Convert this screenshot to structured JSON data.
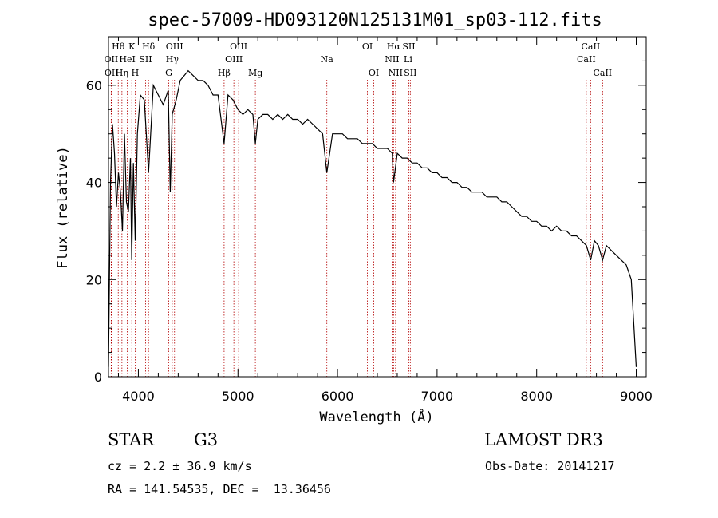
{
  "chart_data": {
    "type": "line",
    "title": "spec-57009-HD093120N125131M01_sp03-112.fits",
    "xlabel": "Wavelength (Å)",
    "ylabel": "Flux (relative)",
    "xlim": [
      3700,
      9100
    ],
    "ylim": [
      0,
      70
    ],
    "x_ticks": [
      4000,
      5000,
      6000,
      7000,
      8000,
      9000
    ],
    "y_ticks": [
      0,
      20,
      40,
      60
    ],
    "series": [
      {
        "x": [
          3700,
          3720,
          3740,
          3760,
          3780,
          3800,
          3820,
          3840,
          3860,
          3880,
          3900,
          3920,
          3933,
          3950,
          3968,
          3990,
          4020,
          4060,
          4102,
          4150,
          4200,
          4250,
          4300,
          4320,
          4340,
          4380,
          4420,
          4460,
          4500,
          4550,
          4600,
          4650,
          4700,
          4750,
          4800,
          4861,
          4900,
          4950,
          5000,
          5050,
          5100,
          5150,
          5175,
          5200,
          5250,
          5300,
          5350,
          5400,
          5450,
          5500,
          5550,
          5600,
          5650,
          5700,
          5750,
          5800,
          5850,
          5893,
          5950,
          6000,
          6050,
          6100,
          6150,
          6200,
          6250,
          6300,
          6350,
          6400,
          6450,
          6500,
          6550,
          6563,
          6600,
          6650,
          6700,
          6750,
          6800,
          6850,
          6900,
          6950,
          7000,
          7050,
          7100,
          7150,
          7200,
          7250,
          7300,
          7350,
          7400,
          7450,
          7500,
          7550,
          7600,
          7650,
          7700,
          7750,
          7800,
          7850,
          7900,
          7950,
          8000,
          8050,
          8100,
          8150,
          8200,
          8250,
          8300,
          8350,
          8400,
          8450,
          8500,
          8542,
          8580,
          8620,
          8662,
          8700,
          8750,
          8800,
          8850,
          8900,
          8950,
          9000
        ],
        "y": [
          2,
          40,
          52,
          46,
          35,
          42,
          38,
          30,
          50,
          36,
          34,
          45,
          24,
          44,
          28,
          50,
          58,
          57,
          42,
          60,
          58,
          56,
          59,
          38,
          54,
          57,
          61,
          62,
          63,
          62,
          61,
          61,
          60,
          58,
          58,
          48,
          58,
          57,
          55,
          54,
          55,
          54,
          48,
          53,
          54,
          54,
          53,
          54,
          53,
          54,
          53,
          53,
          52,
          53,
          52,
          51,
          50,
          42,
          50,
          50,
          50,
          49,
          49,
          49,
          48,
          48,
          48,
          47,
          47,
          47,
          46,
          40,
          46,
          45,
          45,
          44,
          44,
          43,
          43,
          42,
          42,
          41,
          41,
          40,
          40,
          39,
          39,
          38,
          38,
          38,
          37,
          37,
          37,
          36,
          36,
          35,
          34,
          33,
          33,
          32,
          32,
          31,
          31,
          30,
          31,
          30,
          30,
          29,
          29,
          28,
          27,
          24,
          28,
          27,
          24,
          27,
          26,
          25,
          24,
          23,
          20,
          2
        ]
      }
    ],
    "line_ids": [
      {
        "label": "OII",
        "x": 3727,
        "row": 2
      },
      {
        "label": "OII",
        "x": 3730,
        "row": 3
      },
      {
        "label": "Hθ",
        "x": 3798,
        "row": 1
      },
      {
        "label": "Hη",
        "x": 3835,
        "row": 3
      },
      {
        "label": "HeI",
        "x": 3889,
        "row": 2
      },
      {
        "label": "K",
        "x": 3934,
        "row": 1
      },
      {
        "label": "SII",
        "x": 4072,
        "row": 2
      },
      {
        "label": "H",
        "x": 3968,
        "row": 3
      },
      {
        "label": "Hδ",
        "x": 4102,
        "row": 1
      },
      {
        "label": "OIII",
        "x": 4363,
        "row": 1
      },
      {
        "label": "Hγ",
        "x": 4340,
        "row": 2
      },
      {
        "label": "G",
        "x": 4305,
        "row": 3
      },
      {
        "label": "Hβ",
        "x": 4861,
        "row": 3
      },
      {
        "label": "OIII",
        "x": 4959,
        "row": 2
      },
      {
        "label": "OIII",
        "x": 5007,
        "row": 1
      },
      {
        "label": "Mg",
        "x": 5175,
        "row": 3
      },
      {
        "label": "Na",
        "x": 5893,
        "row": 2
      },
      {
        "label": "OI",
        "x": 6300,
        "row": 1
      },
      {
        "label": "OI",
        "x": 6364,
        "row": 3
      },
      {
        "label": "Hα",
        "x": 6563,
        "row": 1
      },
      {
        "label": "NII",
        "x": 6548,
        "row": 2
      },
      {
        "label": "NII",
        "x": 6583,
        "row": 3
      },
      {
        "label": "SII",
        "x": 6716,
        "row": 1
      },
      {
        "label": "Li",
        "x": 6708,
        "row": 2
      },
      {
        "label": "SII",
        "x": 6731,
        "row": 3
      },
      {
        "label": "CaII",
        "x": 8542,
        "row": 1
      },
      {
        "label": "CaII",
        "x": 8498,
        "row": 2
      },
      {
        "label": "CaII",
        "x": 8662,
        "row": 3
      }
    ],
    "line_color": "#000000",
    "id_line_color": "#b30000"
  },
  "info": {
    "class": "STAR",
    "subclass": "G3",
    "survey": "LAMOST DR3",
    "cz": "cz = 2.2 ± 36.9 km/s",
    "obs_date": "Obs-Date: 20141217",
    "radec": "RA = 141.54535, DEC =  13.36456"
  }
}
